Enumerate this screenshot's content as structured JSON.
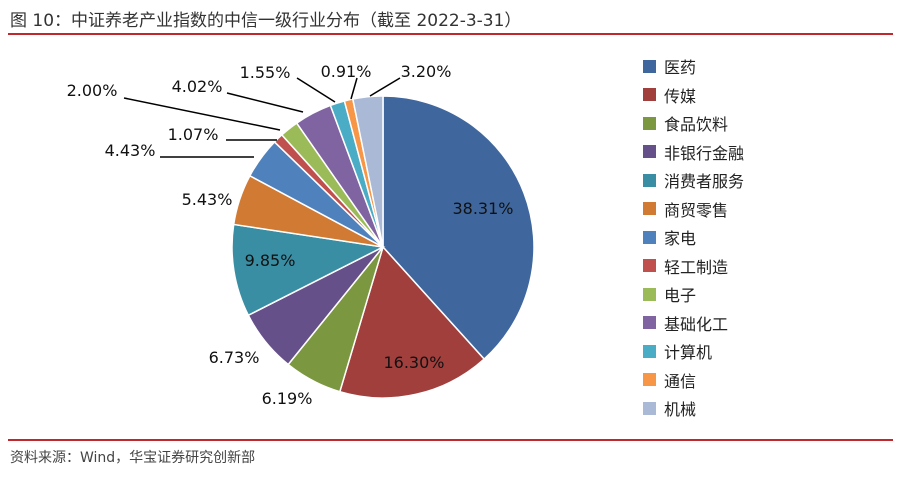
{
  "title": "图 10：中证养老产业指数的中信一级行业分布（截至 2022-3-31）",
  "source": "资料来源：Wind，华宝证券研究创新部",
  "chart_data": {
    "type": "pie",
    "title": "图 10：中证养老产业指数的中信一级行业分布（截至 2022-3-31）",
    "legend_position": "right",
    "categories": [
      "医药",
      "传媒",
      "食品饮料",
      "非银行金融",
      "消费者服务",
      "商贸零售",
      "家电",
      "轻工制造",
      "电子",
      "基础化工",
      "计算机",
      "通信",
      "机械"
    ],
    "values": [
      38.31,
      16.3,
      6.19,
      6.73,
      9.85,
      5.43,
      4.43,
      1.07,
      2.0,
      4.02,
      1.55,
      0.91,
      3.2
    ],
    "labels": [
      "38.31%",
      "16.30%",
      "6.19%",
      "6.73%",
      "9.85%",
      "5.43%",
      "4.43%",
      "1.07%",
      "2.00%",
      "4.02%",
      "1.55%",
      "0.91%",
      "3.20%"
    ],
    "colors": [
      "#3f679d",
      "#a13f3d",
      "#7b973f",
      "#65508a",
      "#3a8ea4",
      "#d07a33",
      "#4f81bd",
      "#c0504d",
      "#9bbb59",
      "#8064a2",
      "#4bacc6",
      "#f79646",
      "#a9b9d6"
    ]
  }
}
